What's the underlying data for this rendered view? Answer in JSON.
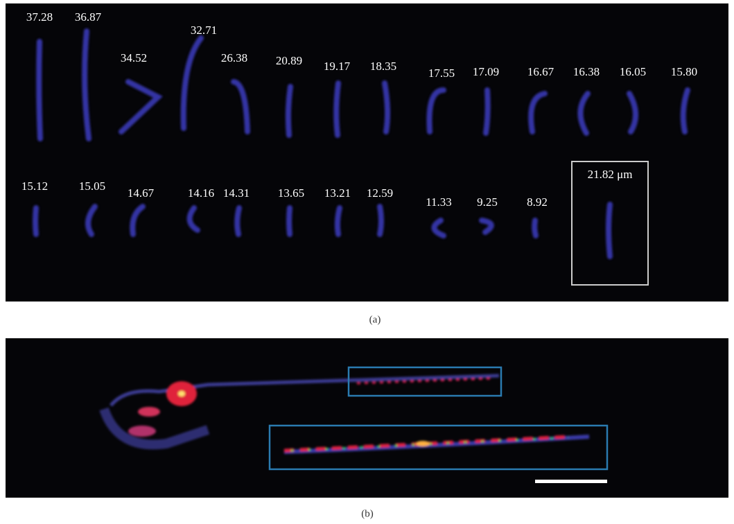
{
  "panel_a": {
    "labels": [
      "37.28",
      "36.87",
      "34.52",
      "32.71",
      "26.38",
      "20.89",
      "19.17",
      "18.35",
      "17.55",
      "17.09",
      "16.67",
      "16.38",
      "16.05",
      "15.80",
      "15.12",
      "15.05",
      "14.67",
      "14.16",
      "14.31",
      "13.65",
      "13.21",
      "12.59",
      "11.33",
      "9.25",
      "8.92",
      "21.82 μm"
    ]
  },
  "captions": {
    "a": "(a)",
    "b": "(b)"
  }
}
